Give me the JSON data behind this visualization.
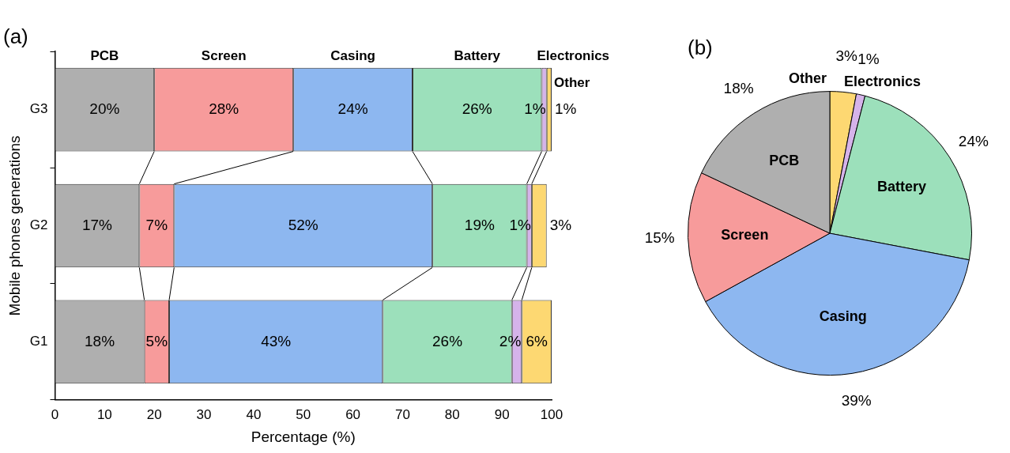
{
  "chart_data": [
    {
      "type": "bar",
      "title": "(a)",
      "orientation": "horizontal",
      "stacked": true,
      "legend": false,
      "grid": false,
      "xlabel": "Percentage (%)",
      "ylabel": "Mobile phones generations",
      "categories": [
        "G3",
        "G2",
        "G1"
      ],
      "xlim": [
        0,
        100
      ],
      "xticks": [
        0,
        10,
        20,
        30,
        40,
        50,
        60,
        70,
        80,
        90,
        100
      ],
      "series": [
        {
          "name": "PCB",
          "color": "#afafaf",
          "values": [
            20,
            17,
            18
          ],
          "value_labels": [
            "20%",
            "17%",
            "18%"
          ]
        },
        {
          "name": "Screen",
          "color": "#f79b9b",
          "values": [
            28,
            7,
            5
          ],
          "value_labels": [
            "28%",
            "7%",
            "5%"
          ]
        },
        {
          "name": "Casing",
          "color": "#8db7f0",
          "values": [
            24,
            52,
            43
          ],
          "value_labels": [
            "24%",
            "52%",
            "43%"
          ]
        },
        {
          "name": "Battery",
          "color": "#9ce0bb",
          "values": [
            26,
            19,
            26
          ],
          "value_labels": [
            "26%",
            "19%",
            "26%"
          ]
        },
        {
          "name": "Electronics",
          "color": "#d5b3ea",
          "values": [
            1,
            1,
            2
          ],
          "value_labels": [
            "1%",
            "1%",
            "2%"
          ]
        },
        {
          "name": "Other",
          "color": "#fdd872",
          "values": [
            1,
            3,
            6
          ],
          "value_labels": [
            "1%",
            "3%",
            "6%"
          ]
        }
      ]
    },
    {
      "type": "pie",
      "title": "(b)",
      "legend": false,
      "categories": [
        "Other",
        "Electronics",
        "Battery",
        "Casing",
        "Screen",
        "PCB"
      ],
      "values": [
        3,
        1,
        24,
        39,
        15,
        18
      ],
      "value_labels": [
        "3%",
        "1%",
        "24%",
        "39%",
        "15%",
        "18%"
      ],
      "colors": [
        "#fdd872",
        "#d5b3ea",
        "#9ce0bb",
        "#8db7f0",
        "#f79b9b",
        "#afafaf"
      ]
    }
  ]
}
